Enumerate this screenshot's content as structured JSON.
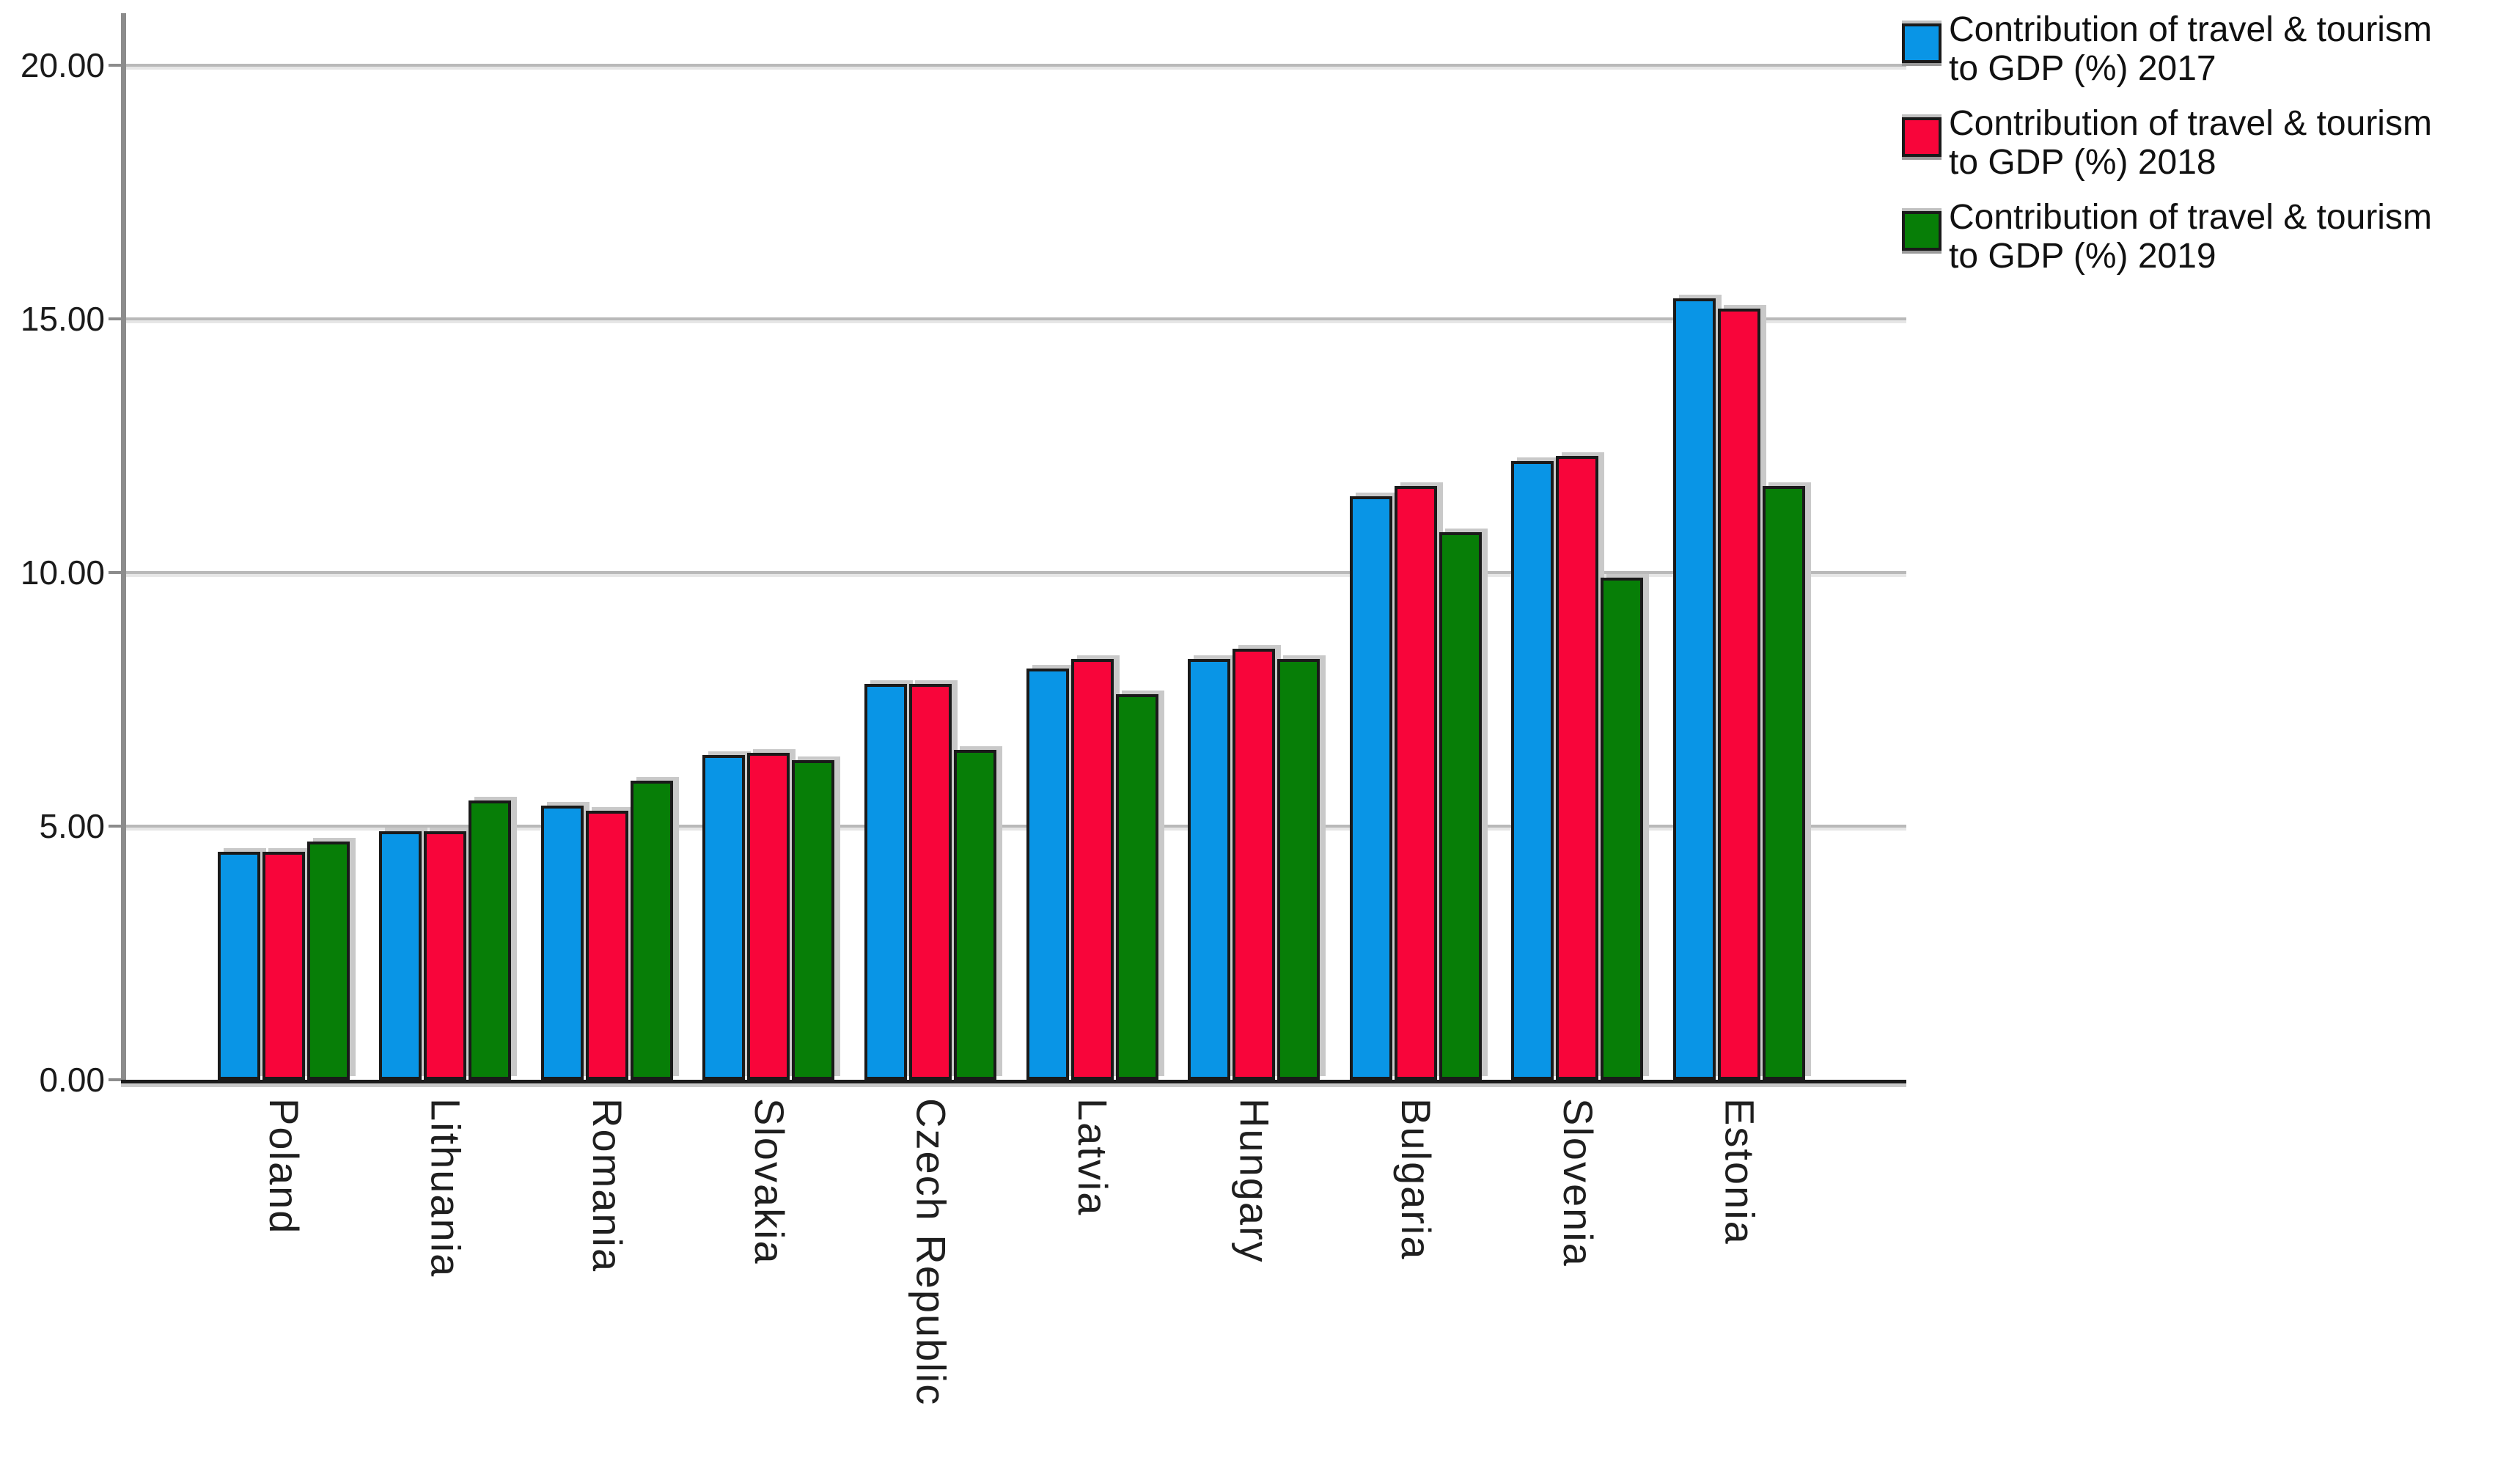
{
  "legend": {
    "items": [
      {
        "line1": "Contribution of travel & tourism",
        "line2": "to GDP (%) 2017",
        "color": "#0995e6",
        "year": "2017"
      },
      {
        "line1": "Contribution of travel & tourism",
        "line2": "to GDP (%) 2018",
        "color": "#f8053a",
        "year": "2018"
      },
      {
        "line1": "Contribution of travel & tourism",
        "line2": "to GDP (%) 2019",
        "color": "#077e07",
        "year": "2019"
      }
    ]
  },
  "y_axis": {
    "tick_labels": [
      "0.00",
      "5.00",
      "10.00",
      "15.00",
      "20.00"
    ],
    "tick_values": [
      0,
      5,
      10,
      15,
      20
    ]
  },
  "chart_data": {
    "type": "bar",
    "title": "",
    "xlabel": "",
    "ylabel": "",
    "categories": [
      "Poland",
      "Lithuania",
      "Romania",
      "Slovakia",
      "Czech Republic",
      "Latvia",
      "Hungary",
      "Bulgaria",
      "Slovenia",
      "Estonia"
    ],
    "series": [
      {
        "name": "Contribution of travel & tourism to GDP (%) 2017",
        "year": "2017",
        "color": "#0995e6",
        "values": [
          4.5,
          4.9,
          5.4,
          6.4,
          7.8,
          8.1,
          8.3,
          11.5,
          12.2,
          15.4
        ]
      },
      {
        "name": "Contribution of travel & tourism to GDP (%) 2018",
        "year": "2018",
        "color": "#f8053a",
        "values": [
          4.5,
          4.9,
          5.3,
          6.45,
          7.8,
          8.3,
          8.5,
          11.7,
          12.3,
          15.2
        ]
      },
      {
        "name": "Contribution of travel & tourism to GDP (%) 2019",
        "year": "2019",
        "color": "#077e07",
        "values": [
          4.7,
          5.5,
          5.9,
          6.3,
          6.5,
          7.6,
          8.3,
          10.8,
          9.9,
          11.7
        ]
      }
    ],
    "ylim": [
      0,
      21
    ],
    "yticks": [
      0,
      5,
      10,
      15,
      20
    ],
    "grid": "horizontal-light-gray",
    "legend_position": "top-right",
    "x_label_rotation": "vertical"
  },
  "colors": {
    "bar_border": "#1a1a1a",
    "gridline": "#b9b9b9",
    "y_axis_line": "#8c8c8c",
    "x_axis_line": "#1a1a1a",
    "shadow": "#c9c9c9",
    "background": "#ffffff"
  }
}
